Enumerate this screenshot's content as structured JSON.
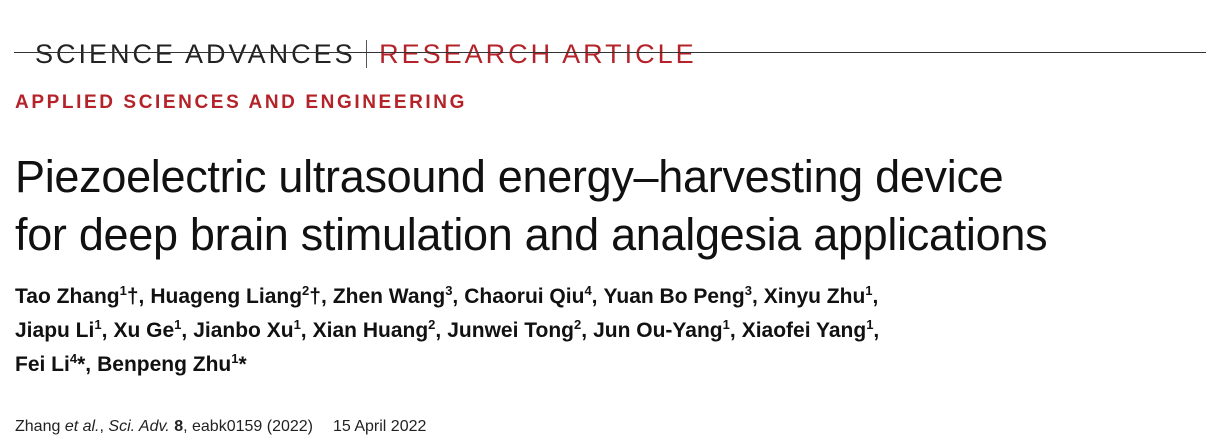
{
  "header": {
    "journal": "SCIENCE ADVANCES",
    "section": "RESEARCH ARTICLE"
  },
  "category": "APPLIED SCIENCES AND ENGINEERING",
  "title_lines": [
    "Piezoelectric ultrasound energy–harvesting device",
    "for deep brain stimulation and analgesia applications"
  ],
  "author_lines": [
    [
      {
        "name": "Tao Zhang",
        "sup": "1",
        "mark": "†",
        "sep": ","
      },
      {
        "name": "Huageng Liang",
        "sup": "2",
        "mark": "†",
        "sep": ","
      },
      {
        "name": "Zhen Wang",
        "sup": "3",
        "sep": ","
      },
      {
        "name": "Chaorui Qiu",
        "sup": "4",
        "sep": ","
      },
      {
        "name": "Yuan Bo Peng",
        "sup": "3",
        "sep": ","
      },
      {
        "name": "Xinyu Zhu",
        "sup": "1",
        "sep": ","
      }
    ],
    [
      {
        "name": "Jiapu Li",
        "sup": "1",
        "sep": ","
      },
      {
        "name": "Xu Ge",
        "sup": "1",
        "sep": ","
      },
      {
        "name": "Jianbo Xu",
        "sup": "1",
        "sep": ","
      },
      {
        "name": "Xian Huang",
        "sup": "2",
        "sep": ","
      },
      {
        "name": "Junwei Tong",
        "sup": "2",
        "sep": ","
      },
      {
        "name": "Jun Ou-Yang",
        "sup": "1",
        "sep": ","
      },
      {
        "name": "Xiaofei Yang",
        "sup": "1",
        "sep": ","
      }
    ],
    [
      {
        "name": "Fei Li",
        "sup": "4",
        "mark": "*",
        "sep": ","
      },
      {
        "name": "Benpeng Zhu",
        "sup": "1",
        "mark": "*"
      }
    ]
  ],
  "citation": {
    "segments": [
      {
        "text": "Zhang ",
        "style": "normal"
      },
      {
        "text": "et al.",
        "style": "italic"
      },
      {
        "text": ", ",
        "style": "normal"
      },
      {
        "text": "Sci. Adv.",
        "style": "italic"
      },
      {
        "text": " ",
        "style": "normal"
      },
      {
        "text": "8",
        "style": "bold"
      },
      {
        "text": ", eabk0159 (2022)",
        "style": "normal"
      }
    ],
    "date": "15 April 2022"
  }
}
